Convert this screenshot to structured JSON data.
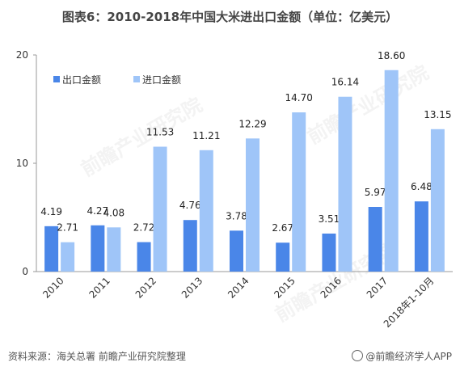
{
  "title": "图表6：2010-2018年中国大米进出口金额（单位：亿美元）",
  "source": "资料来源：海关总署  前瞻产业研究院整理",
  "brand": "@前瞻经济学人APP",
  "watermark": "前瞻产业研究院",
  "colors": {
    "export": "#4a86e8",
    "import": "#9fc5f8",
    "axis": "#999999"
  },
  "chart_data": {
    "type": "bar",
    "categories": [
      "2010",
      "2011",
      "2012",
      "2013",
      "2014",
      "2015",
      "2016",
      "2017",
      "2018年1-10月"
    ],
    "series": [
      {
        "name": "出口金额",
        "values": [
          4.19,
          4.27,
          2.72,
          4.76,
          3.78,
          2.67,
          3.51,
          5.97,
          6.48
        ]
      },
      {
        "name": "进口金额",
        "values": [
          2.71,
          4.08,
          11.53,
          11.21,
          12.29,
          14.7,
          16.14,
          18.6,
          13.15
        ]
      }
    ],
    "value_labels": [
      [
        "4.19",
        "4.27",
        "2.72",
        "4.76",
        "3.78",
        "2.67",
        "3.51",
        "5.97",
        "6.48"
      ],
      [
        "2.71",
        "4.08",
        "11.53",
        "11.21",
        "12.29",
        "14.70",
        "16.14",
        "18.60",
        "13.15"
      ]
    ],
    "y_ticks": [
      "0",
      "10",
      "20"
    ],
    "ylim": [
      0,
      20
    ],
    "legend_position": "top-left"
  }
}
